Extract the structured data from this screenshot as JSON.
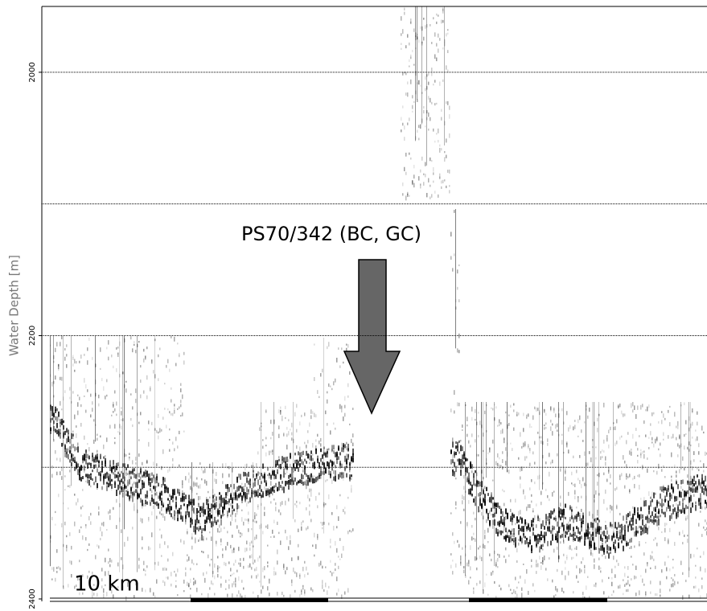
{
  "chart_data": {
    "type": "echogram",
    "y_label": "Water Depth [m]",
    "ylim": [
      1950,
      2400
    ],
    "yticks": [
      2000,
      2200,
      2400
    ],
    "grid_lines": [
      2000,
      2100,
      2200,
      2300
    ],
    "grid": true,
    "annotation": "PS70/342 (BC, GC)",
    "scale_label": "10 km"
  }
}
